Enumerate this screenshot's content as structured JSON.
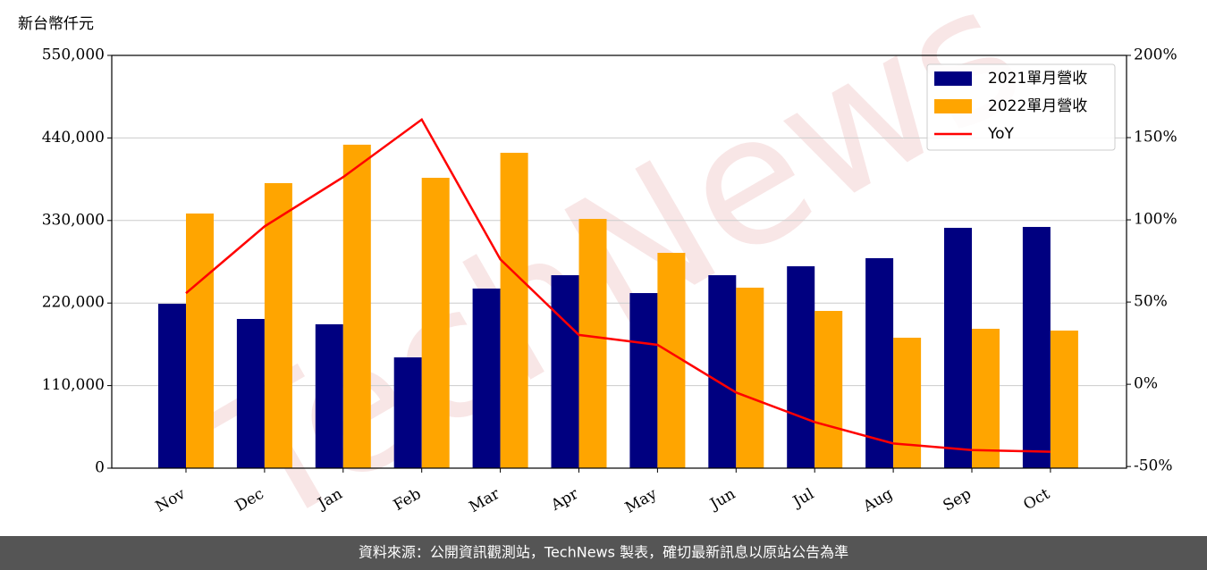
{
  "chart_data": {
    "type": "bar_line",
    "y_axis_label": "新台幣仟元",
    "watermark": "TechNews",
    "footer": "資料來源：公開資訊觀測站，TechNews 製表，確切最新訊息以原站公告為準",
    "categories": [
      "Nov",
      "Dec",
      "Jan",
      "Feb",
      "Mar",
      "Apr",
      "May",
      "Jun",
      "Jul",
      "Aug",
      "Sep",
      "Oct"
    ],
    "series": [
      {
        "name": "2021單月營收",
        "color": "#000080",
        "type": "bar",
        "values": [
          219000,
          198800,
          191700,
          147600,
          239300,
          257100,
          233300,
          257100,
          269000,
          279800,
          320200,
          321400
        ]
      },
      {
        "name": "2022單月營收",
        "color": "#ffa500",
        "type": "bar",
        "values": [
          339300,
          379800,
          431000,
          386900,
          420200,
          332100,
          286900,
          240500,
          209500,
          173800,
          185700,
          183300
        ]
      },
      {
        "name": "YoY",
        "color": "#ff0000",
        "type": "line",
        "axis": "y2",
        "values": [
          55.4,
          96,
          126,
          161,
          76,
          30,
          24,
          -5,
          -23,
          -36,
          -40,
          -41
        ]
      }
    ],
    "ylim": [
      0,
      550000
    ],
    "yticks": [
      0,
      {
        "value": 110000,
        "label": "110,000"
      },
      {
        "value": 220000,
        "label": "220,000"
      },
      {
        "value": 330000,
        "label": "330,000"
      },
      {
        "value": 440000,
        "label": "440,000"
      },
      {
        "value": 550000,
        "label": "550,000"
      }
    ],
    "y2lim": [
      -51,
      200
    ],
    "y2ticks": [
      {
        "value": -50,
        "label": "-50%"
      },
      {
        "value": 0,
        "label": "0%"
      },
      {
        "value": 50,
        "label": "50%"
      },
      {
        "value": 100,
        "label": "100%"
      },
      {
        "value": 150,
        "label": "150%"
      },
      {
        "value": 200,
        "label": "200%"
      }
    ],
    "grid": true,
    "legend": "upper right"
  }
}
